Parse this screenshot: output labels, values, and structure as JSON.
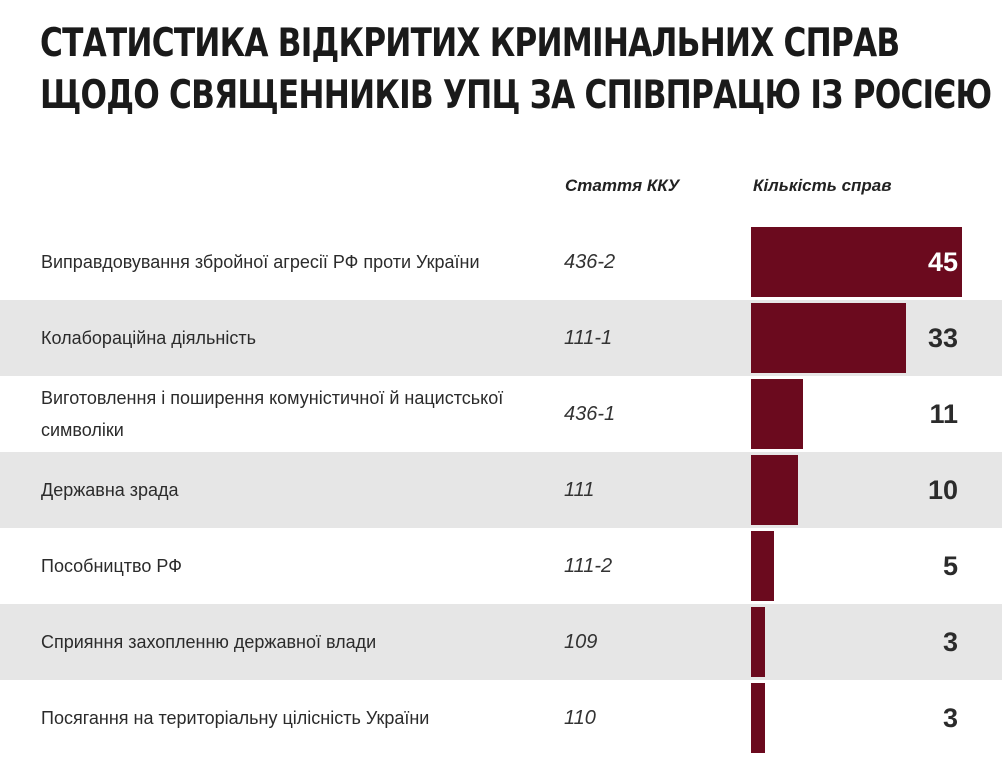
{
  "title": {
    "line1": "Статистика відкритих кримінальних справ",
    "line2": "щодо священників УПЦ за співпрацю із Росією"
  },
  "columns": {
    "article": "Стаття ККУ",
    "count": "Кількість справ"
  },
  "colors": {
    "bar": "#6b0a1e",
    "shaded_row": "#e6e6e6"
  },
  "chart_data": {
    "type": "bar",
    "orientation": "horizontal",
    "categories": [
      "Виправдовування збройної агресії РФ проти України",
      "Колабораційна діяльність",
      "Виготовлення і поширення комуністичної й нацистської символіки",
      "Державна зрада",
      "Пособництво РФ",
      "Сприяння захопленню державної влади",
      "Посягання на територіальну цілісність України"
    ],
    "articles": [
      "436-2",
      "111-1",
      "436-1",
      "111",
      "111-2",
      "109",
      "110"
    ],
    "values": [
      45,
      33,
      11,
      10,
      5,
      3,
      3
    ],
    "xlim": [
      0,
      45
    ]
  }
}
